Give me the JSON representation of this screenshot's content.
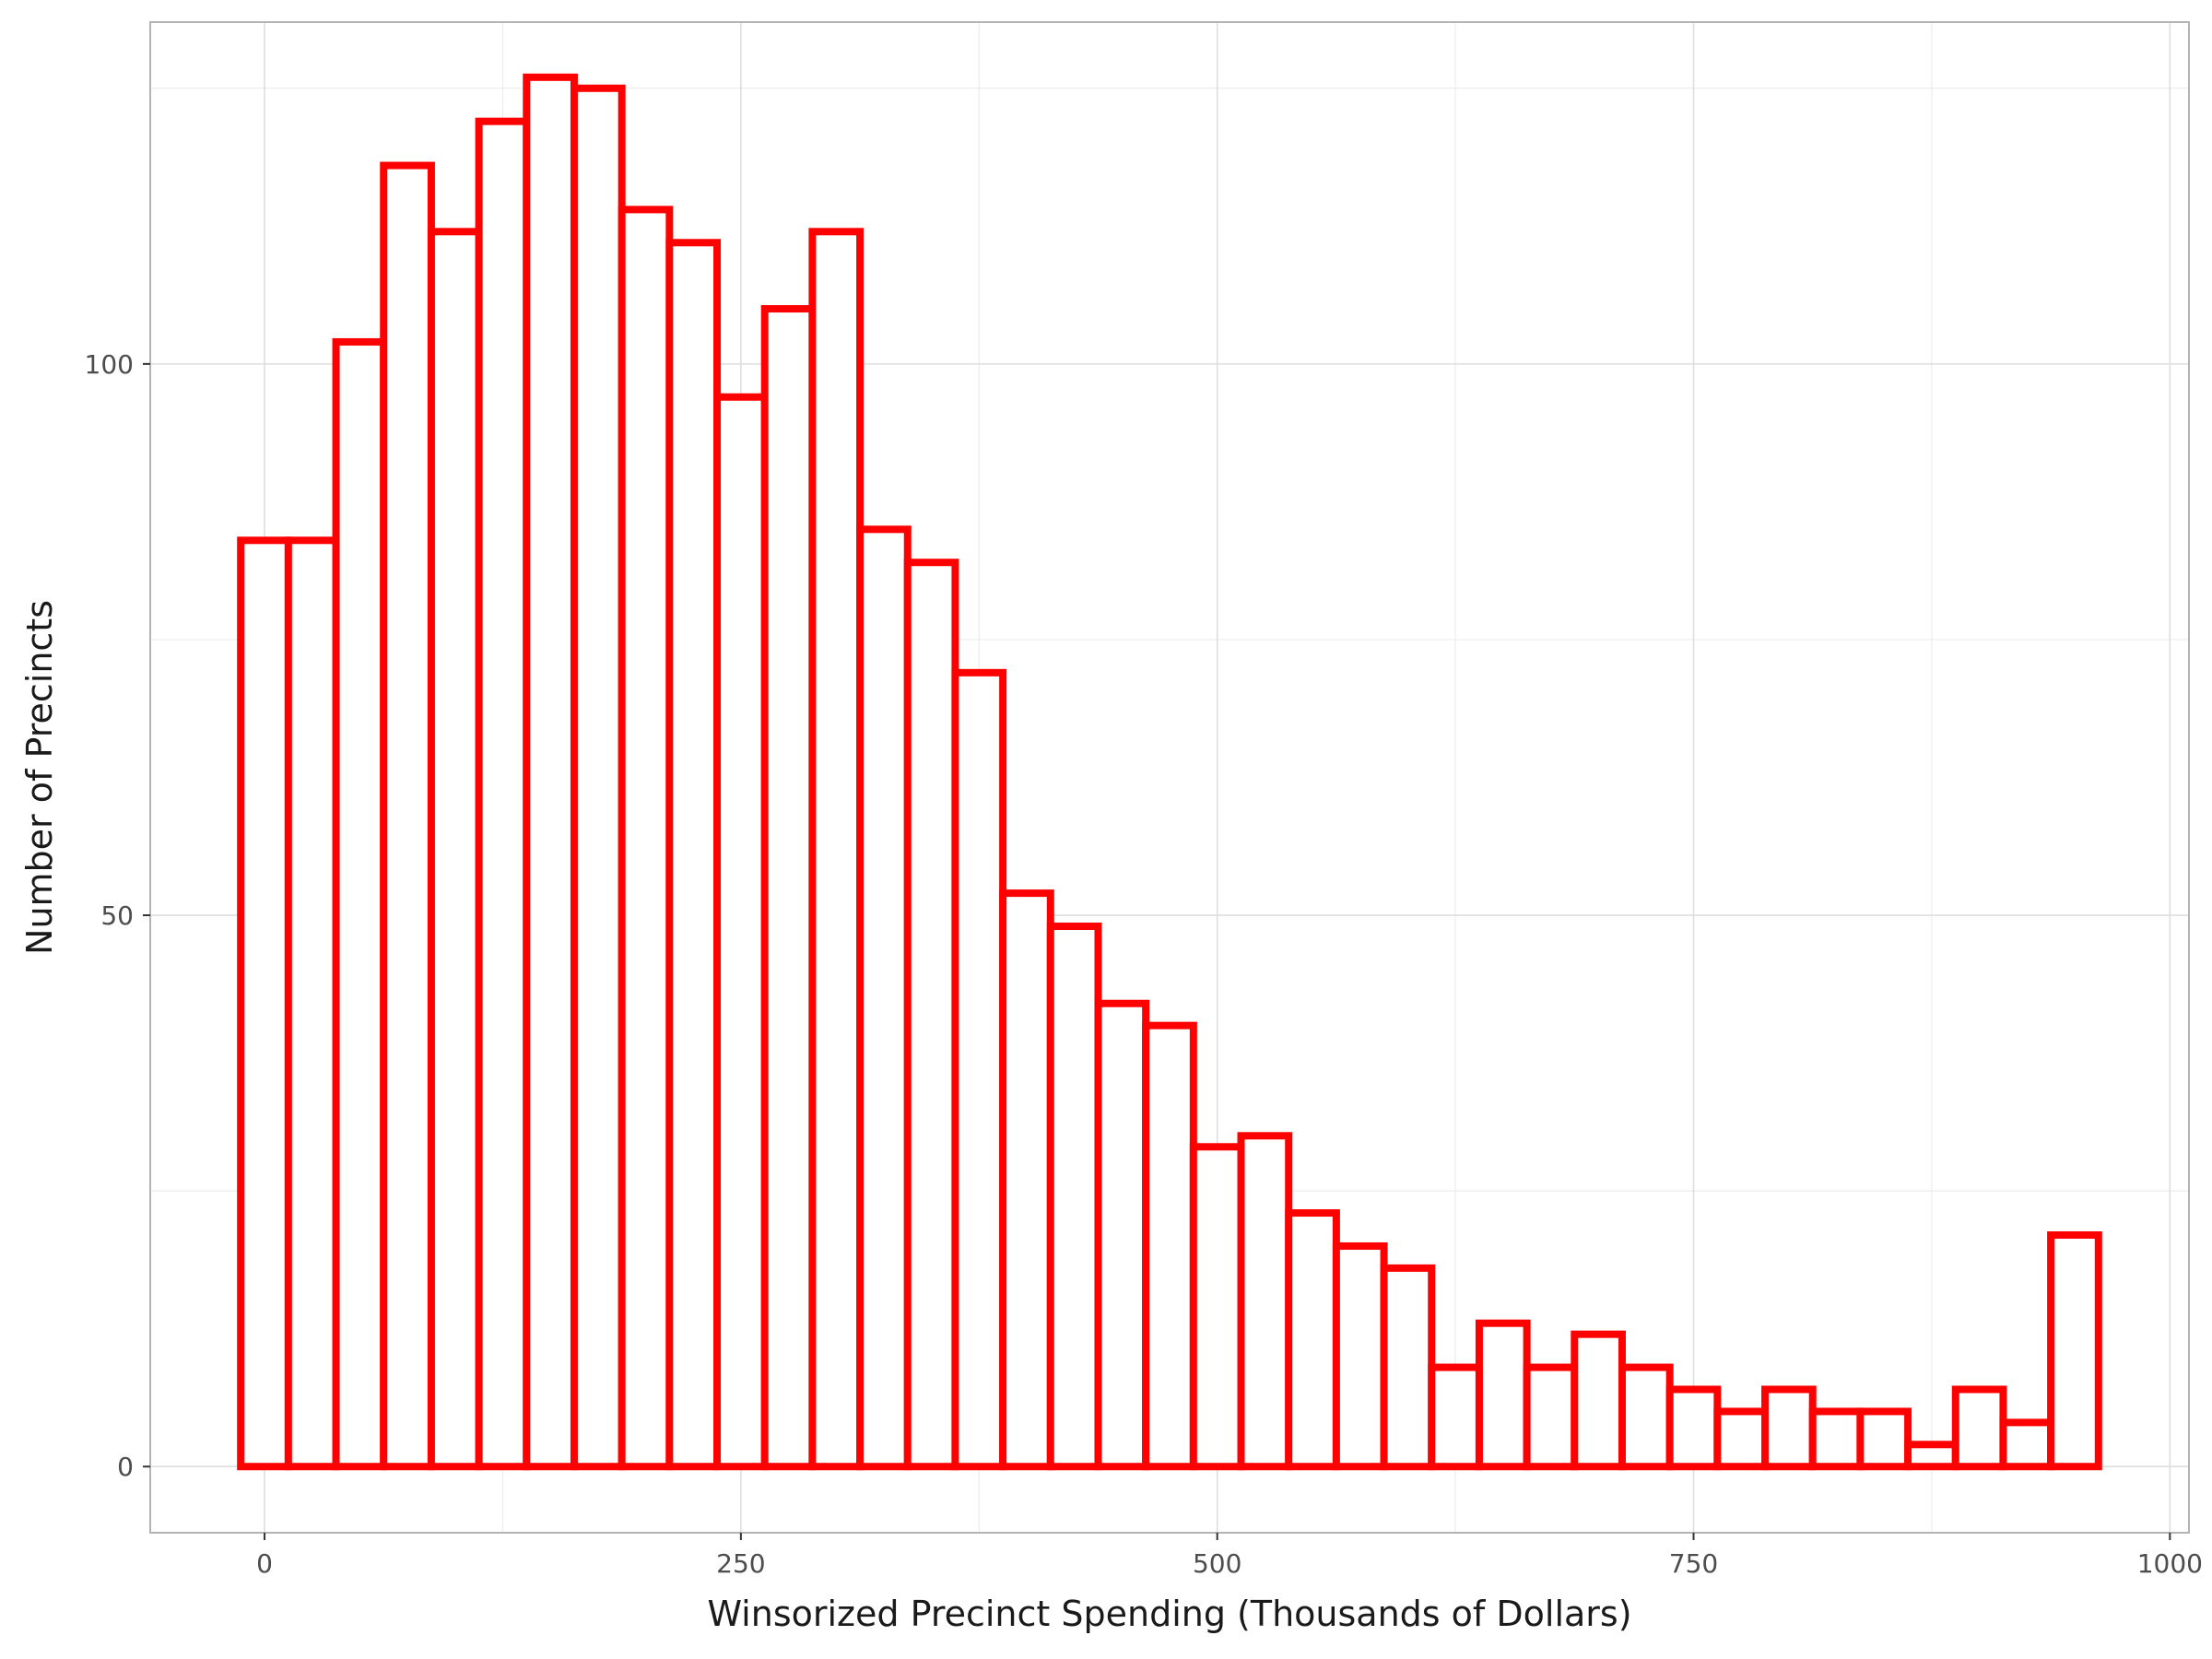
{
  "chart_data": {
    "type": "bar",
    "title": "",
    "xlabel": "Winsorized Precinct Spending (Thousands of Dollars)",
    "ylabel": "Number of Precincts",
    "xlim": [
      -60,
      1010
    ],
    "ylim": [
      -6,
      131
    ],
    "x_ticks": [
      0,
      250,
      500,
      750,
      1000
    ],
    "y_ticks": [
      0,
      50,
      100
    ],
    "grid": true,
    "legend": "none",
    "bar_color": "#ff0000",
    "bar_fill": "#ffffff",
    "bin_width": 25,
    "bins": [
      {
        "x": 0,
        "count": 84
      },
      {
        "x": 25,
        "count": 84
      },
      {
        "x": 50,
        "count": 102
      },
      {
        "x": 75,
        "count": 118
      },
      {
        "x": 100,
        "count": 112
      },
      {
        "x": 125,
        "count": 122
      },
      {
        "x": 150,
        "count": 126
      },
      {
        "x": 175,
        "count": 125
      },
      {
        "x": 200,
        "count": 114
      },
      {
        "x": 225,
        "count": 111
      },
      {
        "x": 250,
        "count": 97
      },
      {
        "x": 275,
        "count": 105
      },
      {
        "x": 300,
        "count": 112
      },
      {
        "x": 325,
        "count": 85
      },
      {
        "x": 350,
        "count": 82
      },
      {
        "x": 375,
        "count": 72
      },
      {
        "x": 400,
        "count": 52
      },
      {
        "x": 425,
        "count": 49
      },
      {
        "x": 450,
        "count": 42
      },
      {
        "x": 475,
        "count": 40
      },
      {
        "x": 500,
        "count": 29
      },
      {
        "x": 525,
        "count": 30
      },
      {
        "x": 550,
        "count": 23
      },
      {
        "x": 575,
        "count": 20
      },
      {
        "x": 600,
        "count": 18
      },
      {
        "x": 625,
        "count": 9
      },
      {
        "x": 650,
        "count": 13
      },
      {
        "x": 675,
        "count": 9
      },
      {
        "x": 700,
        "count": 12
      },
      {
        "x": 725,
        "count": 9
      },
      {
        "x": 750,
        "count": 7
      },
      {
        "x": 775,
        "count": 5
      },
      {
        "x": 800,
        "count": 7
      },
      {
        "x": 825,
        "count": 5
      },
      {
        "x": 850,
        "count": 5
      },
      {
        "x": 875,
        "count": 2
      },
      {
        "x": 900,
        "count": 7
      },
      {
        "x": 925,
        "count": 4
      },
      {
        "x": 950,
        "count": 21
      }
    ]
  }
}
